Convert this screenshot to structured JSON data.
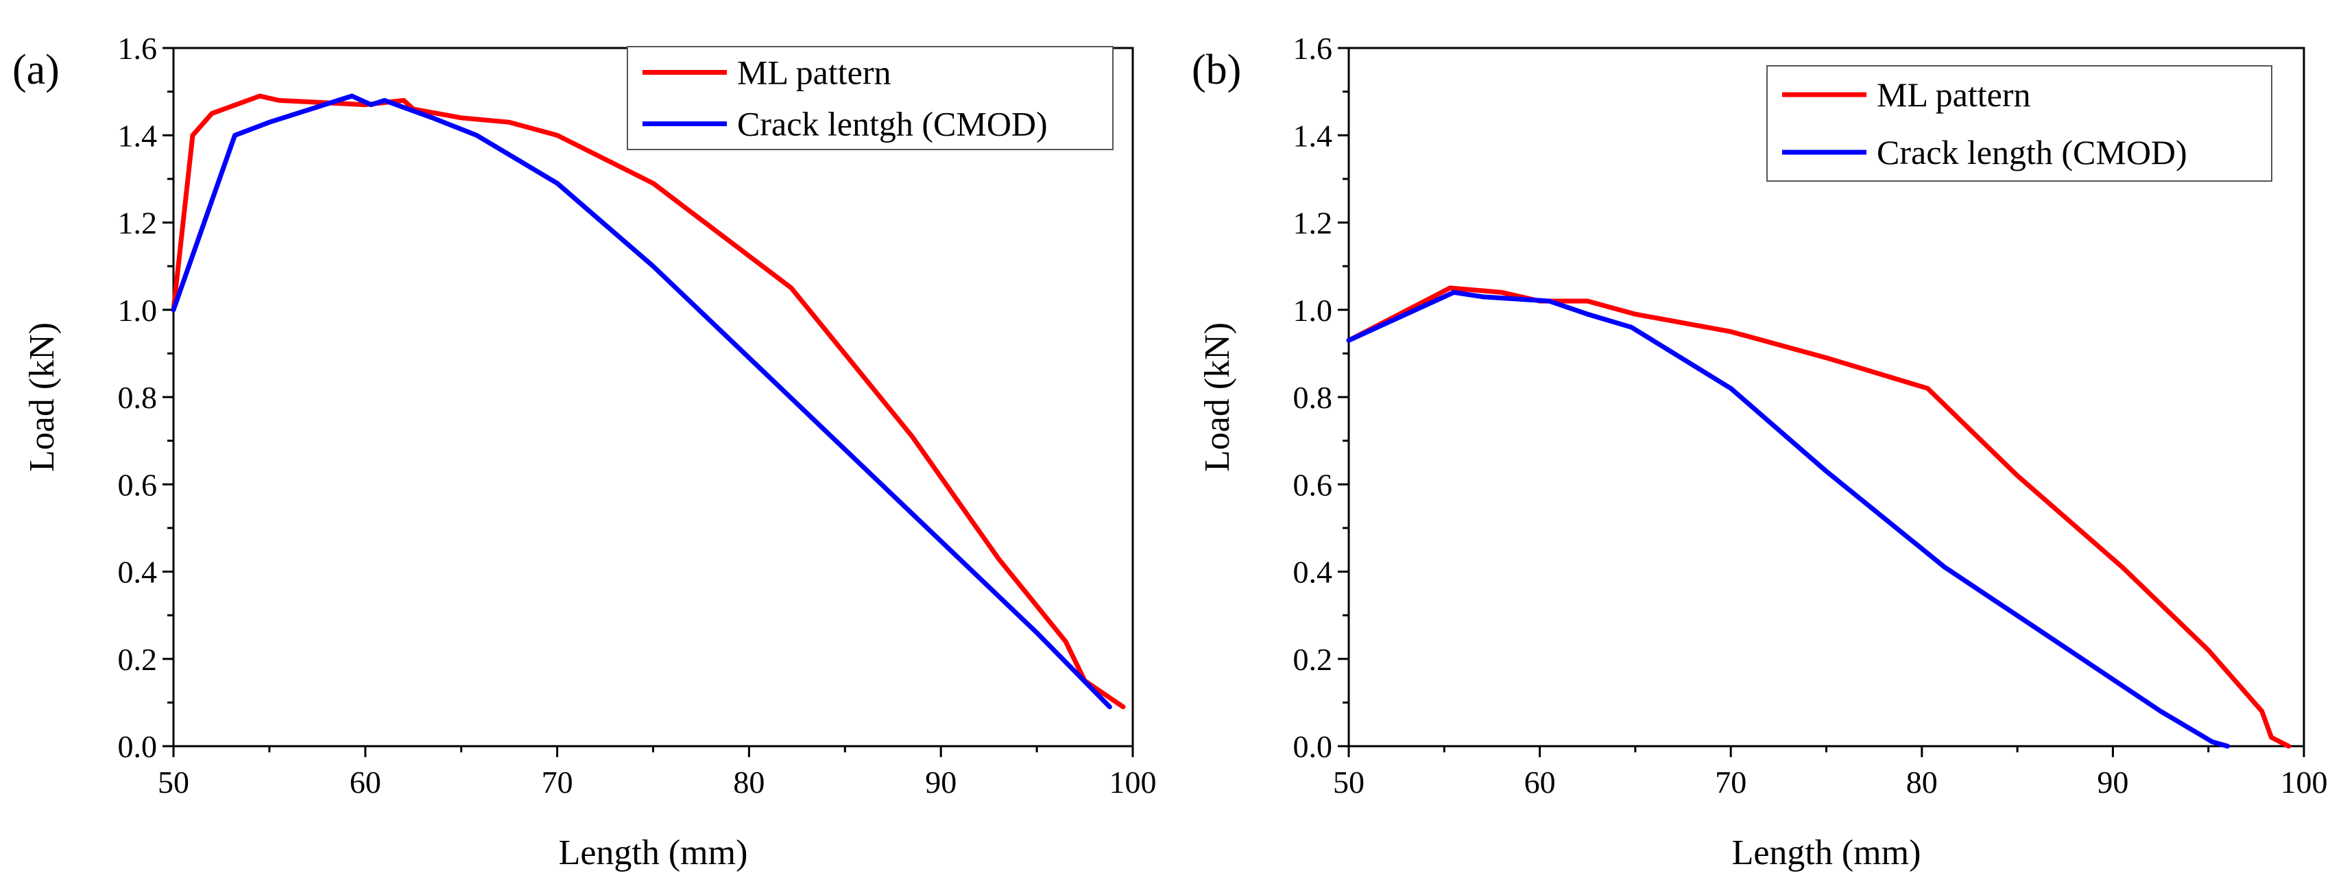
{
  "chart_data": [
    {
      "type": "line",
      "panel_label": "(a)",
      "xlabel": "Length (mm)",
      "ylabel": "Load (kN)",
      "xlim": [
        50,
        100
      ],
      "ylim": [
        0,
        1.6
      ],
      "x_ticks": [
        50,
        60,
        70,
        80,
        90,
        100
      ],
      "y_ticks": [
        0.0,
        0.2,
        0.4,
        0.6,
        0.8,
        1.0,
        1.2,
        1.4,
        1.6
      ],
      "x_tick_labels": [
        "50",
        "60",
        "70",
        "80",
        "90",
        "100"
      ],
      "y_tick_labels": [
        "0.0",
        "0.2",
        "0.4",
        "0.6",
        "0.8",
        "1.0",
        "1.2",
        "1.4",
        "1.6"
      ],
      "legend_position": "top-right",
      "series": [
        {
          "name": "ML pattern",
          "color": "#ff0000",
          "points": [
            [
              50,
              1.0
            ],
            [
              51,
              1.4
            ],
            [
              52,
              1.45
            ],
            [
              54.5,
              1.49
            ],
            [
              55.5,
              1.48
            ],
            [
              60,
              1.47
            ],
            [
              62,
              1.48
            ],
            [
              62.5,
              1.46
            ],
            [
              65,
              1.44
            ],
            [
              67.5,
              1.43
            ],
            [
              70,
              1.4
            ],
            [
              75,
              1.29
            ],
            [
              82.2,
              1.05
            ],
            [
              88.5,
              0.71
            ],
            [
              93,
              0.43
            ],
            [
              96.5,
              0.24
            ],
            [
              97.5,
              0.15
            ],
            [
              99.5,
              0.09
            ]
          ]
        },
        {
          "name": "Crack lentgh (CMOD)",
          "color": "#0000ff",
          "points": [
            [
              50,
              1.0
            ],
            [
              53.2,
              1.4
            ],
            [
              55,
              1.43
            ],
            [
              59.3,
              1.49
            ],
            [
              60.3,
              1.47
            ],
            [
              61,
              1.48
            ],
            [
              63.5,
              1.44
            ],
            [
              65.8,
              1.4
            ],
            [
              70,
              1.29
            ],
            [
              75,
              1.1
            ],
            [
              80,
              0.89
            ],
            [
              85,
              0.68
            ],
            [
              90,
              0.47
            ],
            [
              95,
              0.26
            ],
            [
              98.8,
              0.09
            ]
          ]
        }
      ]
    },
    {
      "type": "line",
      "panel_label": "(b)",
      "xlabel": "Length (mm)",
      "ylabel": "Load (kN)",
      "xlim": [
        50,
        100
      ],
      "ylim": [
        0,
        1.6
      ],
      "x_ticks": [
        50,
        60,
        70,
        80,
        90,
        100
      ],
      "y_ticks": [
        0.0,
        0.2,
        0.4,
        0.6,
        0.8,
        1.0,
        1.2,
        1.4,
        1.6
      ],
      "x_tick_labels": [
        "50",
        "60",
        "70",
        "80",
        "90",
        "100"
      ],
      "y_tick_labels": [
        "0.0",
        "0.2",
        "0.4",
        "0.6",
        "0.8",
        "1.0",
        "1.2",
        "1.4",
        "1.6"
      ],
      "legend_position": "top-right",
      "series": [
        {
          "name": "ML pattern",
          "color": "#ff0000",
          "points": [
            [
              50,
              0.93
            ],
            [
              55.3,
              1.05
            ],
            [
              58,
              1.04
            ],
            [
              60,
              1.02
            ],
            [
              62.5,
              1.02
            ],
            [
              65,
              0.99
            ],
            [
              70,
              0.95
            ],
            [
              75,
              0.89
            ],
            [
              80.3,
              0.82
            ],
            [
              85,
              0.62
            ],
            [
              90.5,
              0.41
            ],
            [
              95,
              0.22
            ],
            [
              97.8,
              0.08
            ],
            [
              98.3,
              0.02
            ],
            [
              99.2,
              0.0
            ]
          ]
        },
        {
          "name": "Crack length (CMOD)",
          "color": "#0000ff",
          "points": [
            [
              50,
              0.93
            ],
            [
              55.5,
              1.04
            ],
            [
              57,
              1.03
            ],
            [
              60.5,
              1.02
            ],
            [
              62.5,
              0.99
            ],
            [
              64.8,
              0.96
            ],
            [
              70,
              0.82
            ],
            [
              75,
              0.63
            ],
            [
              81.2,
              0.41
            ],
            [
              86,
              0.27
            ],
            [
              92.5,
              0.08
            ],
            [
              95.2,
              0.01
            ],
            [
              96,
              0.0
            ]
          ]
        }
      ]
    }
  ]
}
